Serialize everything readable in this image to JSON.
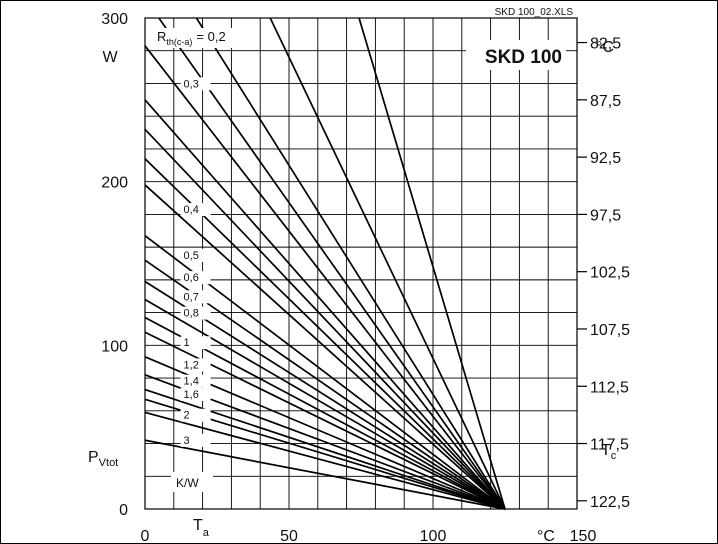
{
  "chart_data": {
    "type": "line",
    "file_tag": "SKD 100_02.XLS",
    "device": "SKD 100",
    "x_unit": "°C",
    "x_symbol": "T",
    "x_symbol_sub": "a",
    "x_ticks": [
      0,
      50,
      100,
      150
    ],
    "xlim": [
      0,
      150
    ],
    "y_unit": "W",
    "y_symbol": "P",
    "y_symbol_sub": "Vtot",
    "y_ticks": [
      0,
      100,
      200,
      300
    ],
    "ylim": [
      0,
      300
    ],
    "y2_unit": "°C",
    "y2_symbol": "T",
    "y2_symbol_sub": "c",
    "y2_ticks": [
      "82,5",
      "87,5",
      "92,5",
      "97,5",
      "102,5",
      "107,5",
      "112,5",
      "117,5",
      "122,5"
    ],
    "y2_tick_power": [
      285,
      250,
      215,
      180,
      145,
      110,
      75,
      40,
      5
    ],
    "param_symbol": "R",
    "param_sub": "th(c-a)",
    "param_first_label": "= 0,2",
    "param_unit": "K/W",
    "convergence": [
      125,
      0
    ],
    "series": [
      {
        "label": "",
        "power_at_0": 740
      },
      {
        "label": "",
        "power_at_0": 460
      },
      {
        "label": "0,2",
        "power_at_0": 350
      },
      {
        "label": "",
        "power_at_0": 312
      },
      {
        "label": "0,3",
        "power_at_0": 283
      },
      {
        "label": "",
        "power_at_0": 250
      },
      {
        "label": "",
        "power_at_0": 232
      },
      {
        "label": "",
        "power_at_0": 214
      },
      {
        "label": "0,4",
        "power_at_0": 198
      },
      {
        "label": "0,5",
        "power_at_0": 167
      },
      {
        "label": "0,6",
        "power_at_0": 152
      },
      {
        "label": "0,7",
        "power_at_0": 139
      },
      {
        "label": "0,8",
        "power_at_0": 128
      },
      {
        "label": "",
        "power_at_0": 117
      },
      {
        "label": "1",
        "power_at_0": 108
      },
      {
        "label": "1,2",
        "power_at_0": 93
      },
      {
        "label": "1,4",
        "power_at_0": 82
      },
      {
        "label": "1,6",
        "power_at_0": 73
      },
      {
        "label": "",
        "power_at_0": 67
      },
      {
        "label": "2",
        "power_at_0": 59
      },
      {
        "label": "3",
        "power_at_0": 42
      }
    ]
  }
}
